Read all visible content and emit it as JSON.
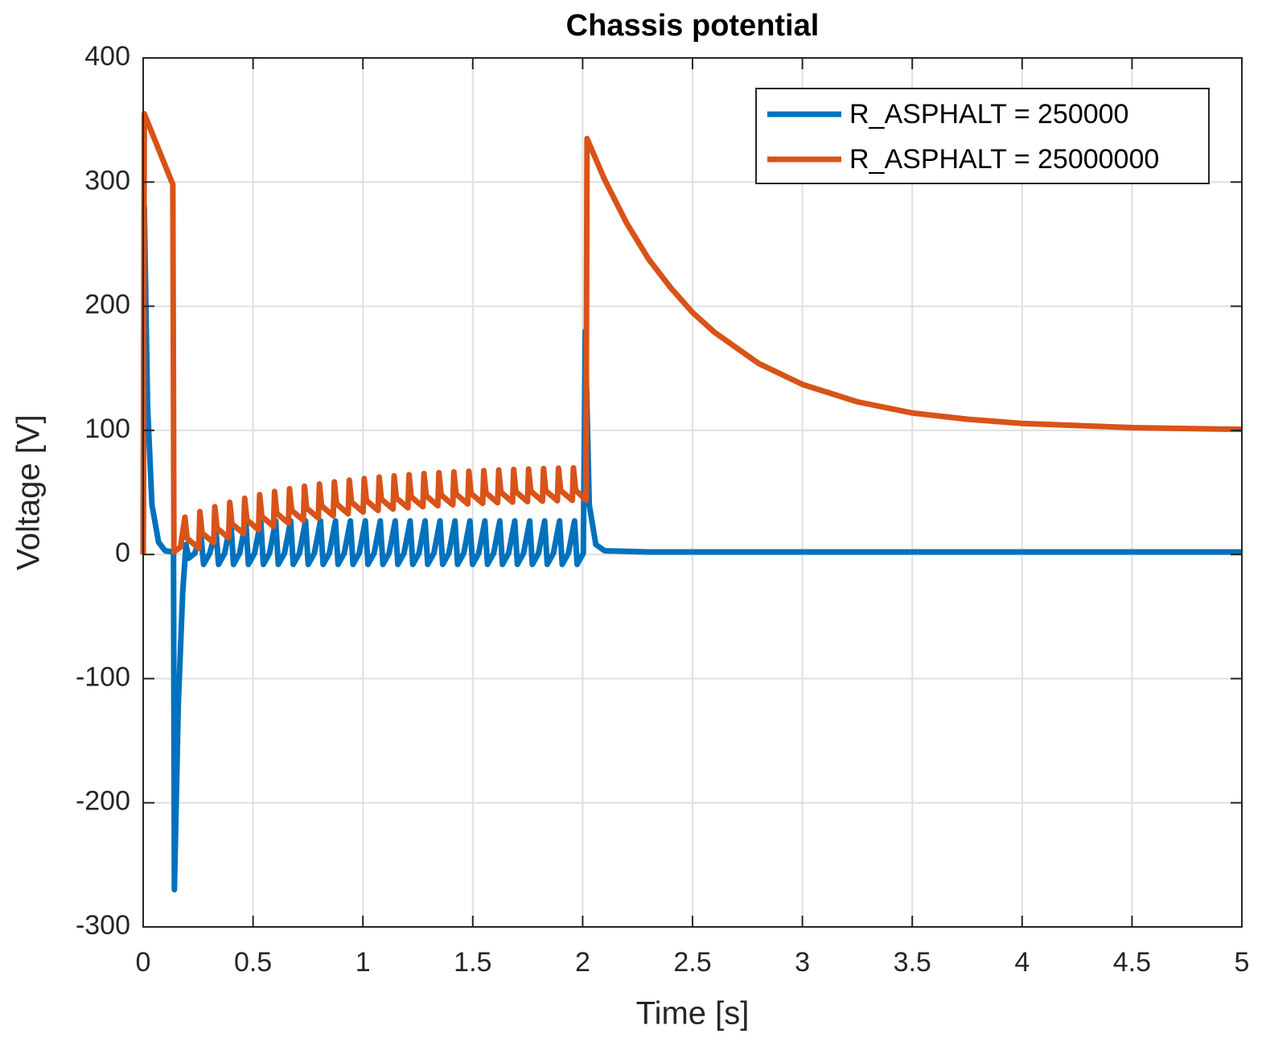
{
  "chart_data": {
    "type": "line",
    "title": "Chassis potential",
    "x_label": "Time [s]",
    "y_label": "Voltage [V]",
    "xlim": [
      0,
      5
    ],
    "xticks": [
      0,
      0.5,
      1,
      1.5,
      2,
      2.5,
      3,
      3.5,
      4,
      4.5,
      5
    ],
    "ylim": [
      -300,
      400
    ],
    "yticks": [
      -300,
      -200,
      -100,
      0,
      100,
      200,
      300,
      400
    ],
    "grid": true,
    "legend": "northeast",
    "series": [
      {
        "name": "R_ASPHALT = 250000",
        "color": "#0072bd",
        "x": [
          0,
          0.005,
          0.02,
          0.04,
          0.07,
          0.1,
          0.138,
          0.142,
          0.16,
          0.18,
          0.195,
          0.207,
          0.235,
          0.263,
          0.275,
          0.303,
          0.331,
          0.343,
          0.371,
          0.399,
          0.411,
          0.439,
          0.467,
          0.479,
          0.507,
          0.535,
          0.547,
          0.575,
          0.603,
          0.615,
          0.643,
          0.671,
          0.683,
          0.711,
          0.739,
          0.751,
          0.779,
          0.807,
          0.819,
          0.847,
          0.875,
          0.887,
          0.915,
          0.943,
          0.955,
          0.983,
          1.011,
          1.023,
          1.051,
          1.079,
          1.091,
          1.119,
          1.147,
          1.159,
          1.187,
          1.215,
          1.227,
          1.255,
          1.283,
          1.295,
          1.323,
          1.351,
          1.363,
          1.391,
          1.419,
          1.431,
          1.459,
          1.487,
          1.499,
          1.527,
          1.555,
          1.567,
          1.595,
          1.623,
          1.635,
          1.663,
          1.691,
          1.703,
          1.731,
          1.759,
          1.771,
          1.799,
          1.827,
          1.839,
          1.867,
          1.895,
          1.907,
          1.935,
          1.963,
          1.975,
          2.003,
          2.012,
          2.03,
          2.06,
          2.1,
          2.3,
          5
        ],
        "values": [
          0,
          280,
          120,
          40,
          10,
          3,
          2,
          -270,
          -120,
          -30,
          8,
          -3,
          1,
          15,
          -8,
          1,
          20,
          -8,
          1,
          27,
          -8,
          1,
          27,
          -8,
          1,
          27,
          -8,
          1,
          27,
          -8,
          1,
          27,
          -8,
          1,
          27,
          -8,
          1,
          27,
          -8,
          1,
          27,
          -8,
          1,
          27,
          -8,
          1,
          27,
          -8,
          1,
          27,
          -8,
          1,
          27,
          -8,
          1,
          27,
          -8,
          1,
          27,
          -8,
          1,
          27,
          -8,
          1,
          27,
          -8,
          1,
          27,
          -8,
          1,
          27,
          -8,
          1,
          27,
          -8,
          1,
          27,
          -8,
          1,
          27,
          -8,
          1,
          27,
          -8,
          1,
          27,
          -8,
          1,
          27,
          -8,
          1,
          180,
          40,
          8,
          3,
          2,
          2
        ]
      },
      {
        "name": "R_ASPHALT = 25000000",
        "color": "#d95319",
        "x": [
          0,
          0.005,
          0.135,
          0.14,
          0.17,
          0.19,
          0.2,
          0.253,
          0.258,
          0.268,
          0.321,
          0.326,
          0.336,
          0.389,
          0.394,
          0.404,
          0.457,
          0.462,
          0.472,
          0.525,
          0.53,
          0.54,
          0.593,
          0.598,
          0.608,
          0.661,
          0.666,
          0.676,
          0.729,
          0.734,
          0.744,
          0.797,
          0.802,
          0.812,
          0.865,
          0.87,
          0.88,
          0.933,
          0.938,
          0.948,
          1.001,
          1.006,
          1.016,
          1.069,
          1.074,
          1.084,
          1.137,
          1.142,
          1.152,
          1.205,
          1.21,
          1.22,
          1.273,
          1.278,
          1.288,
          1.341,
          1.346,
          1.356,
          1.409,
          1.414,
          1.424,
          1.477,
          1.482,
          1.492,
          1.545,
          1.55,
          1.56,
          1.613,
          1.618,
          1.628,
          1.681,
          1.686,
          1.696,
          1.749,
          1.754,
          1.764,
          1.817,
          1.822,
          1.832,
          1.885,
          1.89,
          1.9,
          1.953,
          1.958,
          1.968,
          2.015,
          2.02,
          2.1,
          2.2,
          2.3,
          2.4,
          2.5,
          2.6,
          2.8,
          3,
          3.25,
          3.5,
          3.75,
          4,
          4.5,
          5
        ],
        "values": [
          0,
          355,
          298,
          2,
          6,
          30,
          13,
          5,
          34.5,
          17.4,
          9.4,
          38.5,
          21.3,
          13.3,
          42.1,
          24.8,
          16.8,
          45.3,
          27.9,
          19.9,
          48.2,
          30.7,
          22.7,
          50.7,
          33.2,
          25.2,
          53,
          35.5,
          27.5,
          55,
          37.4,
          29.4,
          56.8,
          39.2,
          31.2,
          58.5,
          40.8,
          32.8,
          59.9,
          42.2,
          34.2,
          61.2,
          43.5,
          35.5,
          62.4,
          44.6,
          36.6,
          63.4,
          45.6,
          37.6,
          64.3,
          46.5,
          38.5,
          65.2,
          47.3,
          39.3,
          65.9,
          48,
          40,
          66.5,
          48.7,
          40.7,
          67.1,
          49.2,
          41.2,
          67.6,
          49.7,
          41.7,
          68.1,
          50.2,
          42.2,
          68.5,
          50.6,
          42.6,
          68.9,
          51,
          43,
          69.2,
          51.3,
          43.3,
          69.5,
          51.6,
          43.6,
          69.8,
          51.8,
          43.8,
          335,
          302,
          267,
          238,
          215,
          195,
          179,
          154,
          137,
          123,
          114,
          109,
          105.6,
          102.2,
          100.8
        ]
      }
    ]
  }
}
